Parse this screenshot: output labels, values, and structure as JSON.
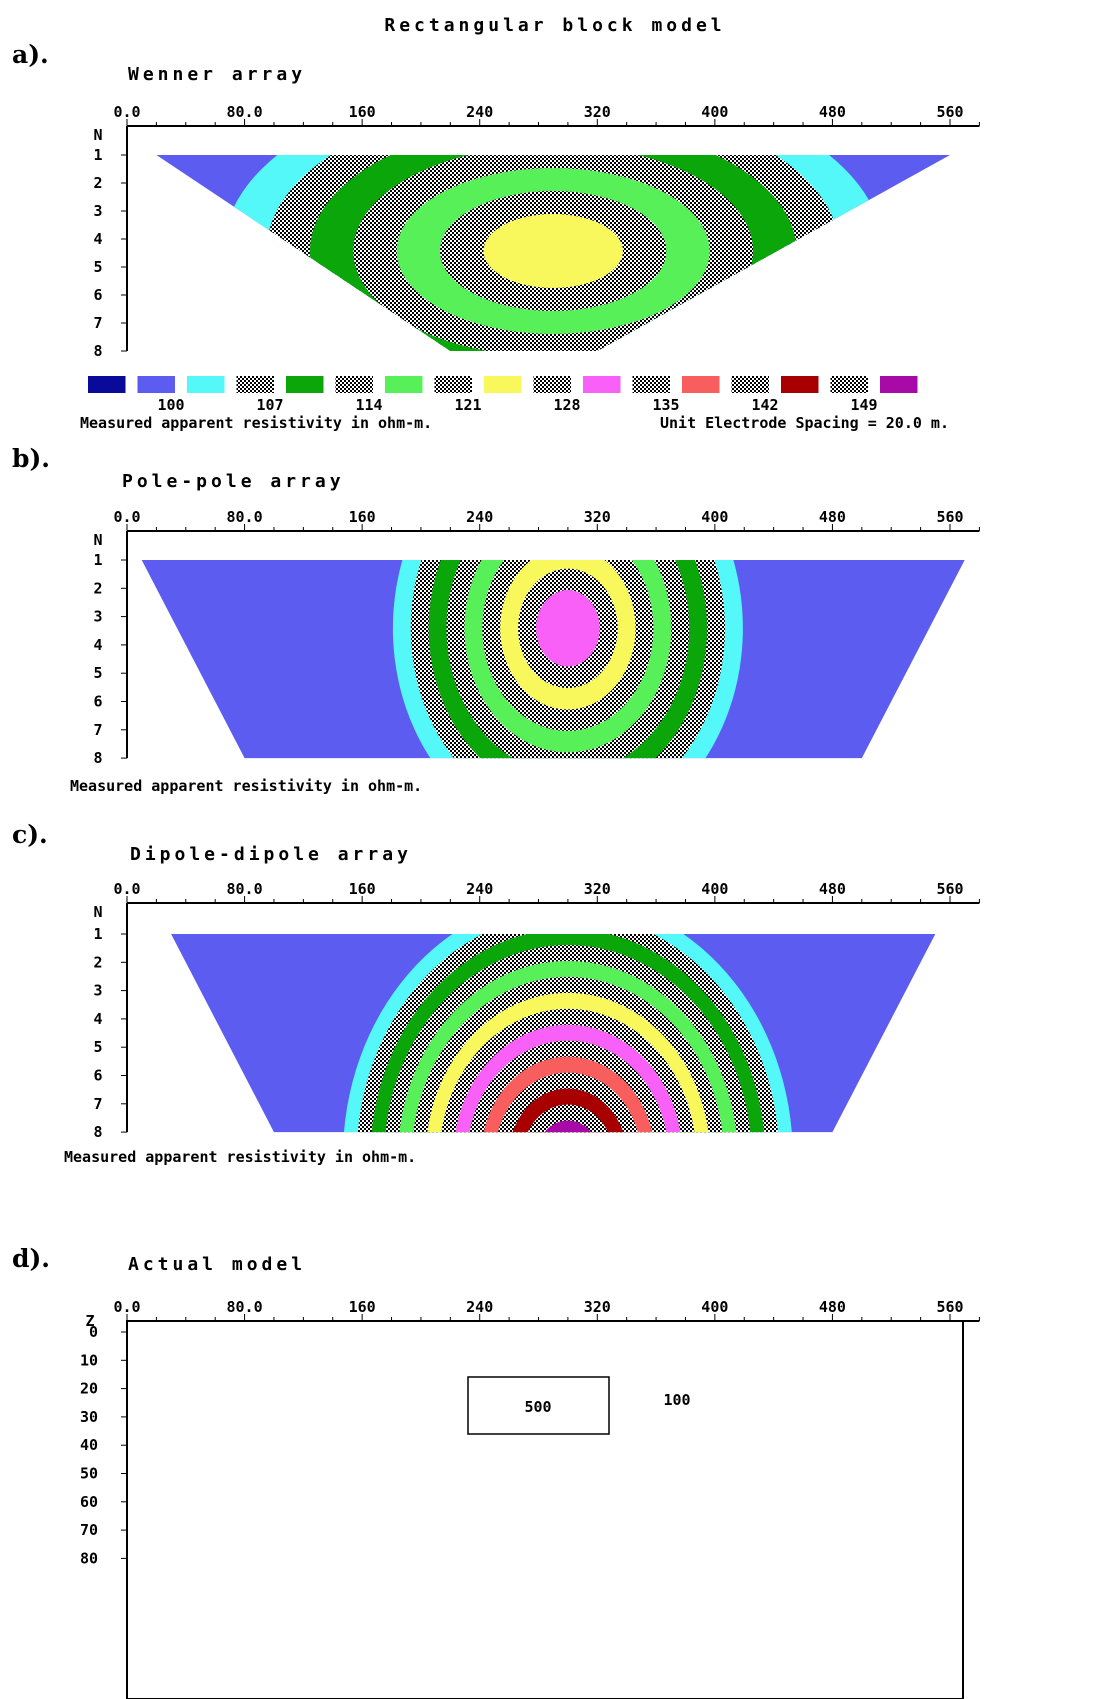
{
  "main_title": "Rectangular block model",
  "unit_spacing_text": "Unit Electrode Spacing = 20.0 m.",
  "x_ticks": [
    "0.0",
    "80.0",
    "160",
    "240",
    "320",
    "400",
    "480",
    "560"
  ],
  "n_axis_label": "N",
  "n_ticks": [
    "1",
    "2",
    "3",
    "4",
    "5",
    "6",
    "7",
    "8"
  ],
  "colors": {
    "palette": [
      "#0a0a9a",
      "#5c5cf0",
      "#55f8f8",
      "#33c276",
      "#0aa60a",
      "#2cc040",
      "#58f058",
      "#b6f05c",
      "#f8f85c",
      "#f8a6a6",
      "#f860f8",
      "#f04ca0",
      "#f85e5e",
      "#cc2222",
      "#a80000",
      "#b01c60",
      "#a80aa8"
    ],
    "legend_labels": [
      "100",
      "107",
      "114",
      "121",
      "128",
      "135",
      "142",
      "149"
    ]
  },
  "panels": [
    {
      "label": "a).",
      "title": "Wenner array",
      "caption": "Measured apparent resistivity in ohm-m."
    },
    {
      "label": "b).",
      "title": "Pole-pole array",
      "caption": "Measured apparent resistivity in ohm-m."
    },
    {
      "label": "c).",
      "title": "Dipole-dipole array",
      "caption": "Measured apparent resistivity in ohm-m."
    }
  ],
  "model": {
    "label": "d).",
    "title": "Actual model",
    "z_axis_label": "Z",
    "z_ticks": [
      "0",
      "10",
      "20",
      "30",
      "40",
      "50",
      "60",
      "70",
      "80"
    ],
    "block_value": "500",
    "background_value": "100"
  },
  "chart_data": [
    {
      "type": "heatmap",
      "title": "Wenner array",
      "xlabel": "",
      "ylabel": "N",
      "xlim": [
        0,
        580
      ],
      "ylim": [
        1,
        8
      ],
      "pseudosection_top": [
        20,
        560
      ],
      "pseudosection_bottom": [
        220,
        320
      ],
      "background_value": 100,
      "anomaly_center_x": 290,
      "anomaly_max_value": 124,
      "anomaly_peak_n": 3
    },
    {
      "type": "heatmap",
      "title": "Pole-pole array",
      "xlabel": "",
      "ylabel": "N",
      "xlim": [
        0,
        580
      ],
      "ylim": [
        1,
        8
      ],
      "pseudosection_top": [
        10,
        570
      ],
      "pseudosection_bottom": [
        80,
        500
      ],
      "background_value": 100,
      "anomaly_center_x": 300,
      "anomaly_max_value": 131,
      "anomaly_peak_n": 2
    },
    {
      "type": "heatmap",
      "title": "Dipole-dipole array",
      "xlabel": "",
      "ylabel": "N",
      "xlim": [
        0,
        580
      ],
      "ylim": [
        1,
        8
      ],
      "pseudosection_top": [
        30,
        550
      ],
      "pseudosection_bottom": [
        100,
        480
      ],
      "background_value": 100,
      "anomaly_center_x": 300,
      "anomaly_max_value": 155,
      "anomaly_peak_n": 5
    },
    {
      "type": "table",
      "title": "Actual model",
      "xlim": [
        0,
        580
      ],
      "zlim": [
        0,
        80
      ],
      "background_resistivity": 100,
      "blocks": [
        {
          "x0": 240,
          "x1": 340,
          "z0": 25,
          "z1": 45,
          "resistivity": 500
        }
      ]
    }
  ]
}
